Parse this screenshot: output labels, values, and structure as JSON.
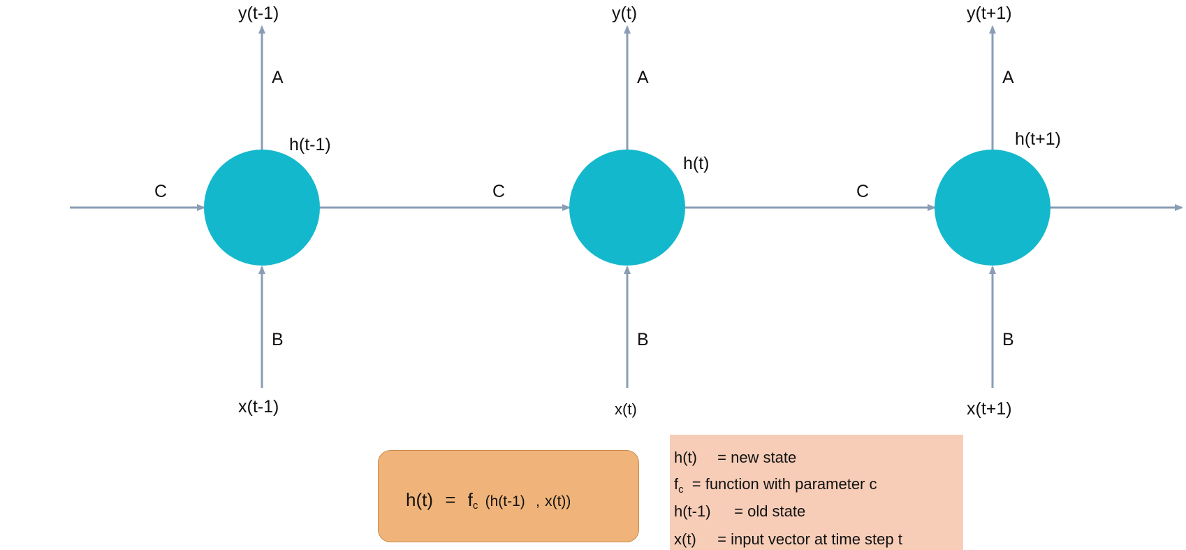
{
  "cells": [
    {
      "label": "h(t-1)",
      "output": "y(t-1)",
      "input": "x(t-1)",
      "output_weight": "A",
      "input_weight": "B",
      "recurrent_weight": "C"
    },
    {
      "label": "h(t)",
      "output": "y(t)",
      "input": "x(t)",
      "output_weight": "A",
      "input_weight": "B",
      "recurrent_weight": "C"
    },
    {
      "label": "h(t+1)",
      "output": "y(t+1)",
      "input": "x(t+1)",
      "output_weight": "A",
      "input_weight": "B",
      "recurrent_weight": "C"
    }
  ],
  "formula": {
    "lhs": "h(t)",
    "equals": "=",
    "func": "f",
    "func_sub": "c",
    "arg1": "(h(t-1)",
    "sep": ",",
    "arg2": "x(t))"
  },
  "legend": [
    {
      "term": "h(t)",
      "definition": "= new state"
    },
    {
      "term": "f",
      "term_sub": "c",
      "definition": "= function with parameter c"
    },
    {
      "term": "h(t-1)",
      "definition": "= old state"
    },
    {
      "term": "x(t)",
      "definition": "= input vector at time step t"
    }
  ],
  "colors": {
    "node": "#14b8cc",
    "arrow": "#8a9db5",
    "formula_box": "#f0b47a",
    "legend_box": "#f7cdb8"
  }
}
